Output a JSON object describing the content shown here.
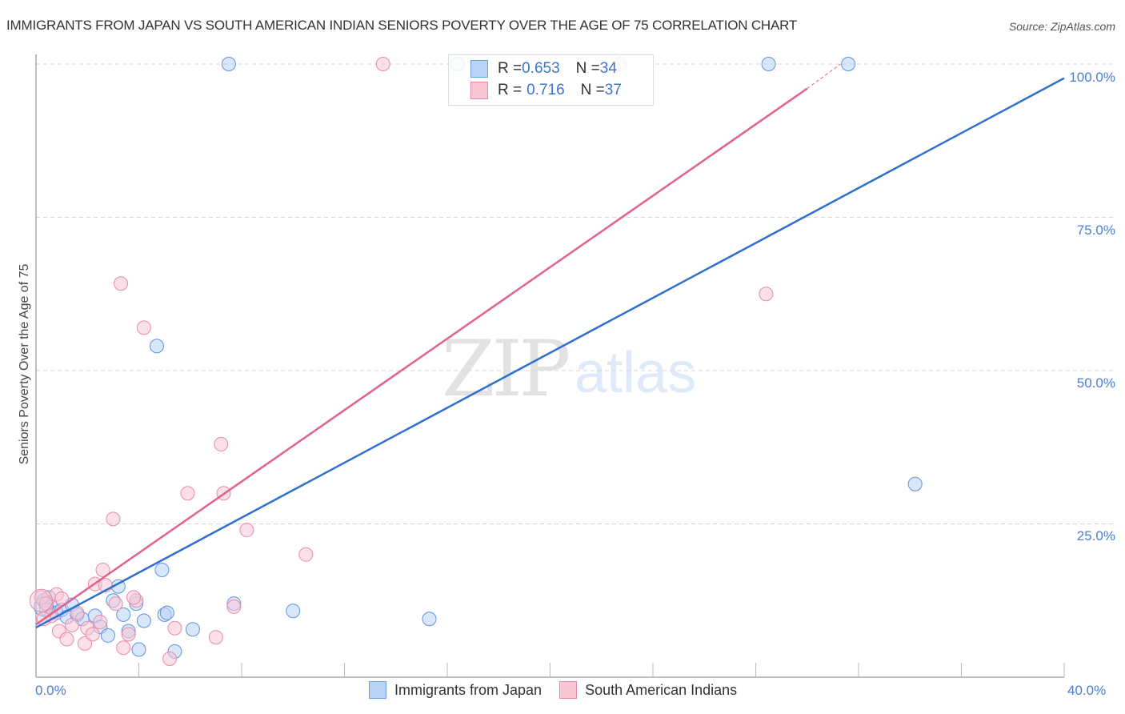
{
  "header": {
    "title": "IMMIGRANTS FROM JAPAN VS SOUTH AMERICAN INDIAN SENIORS POVERTY OVER THE AGE OF 75 CORRELATION CHART",
    "source": "Source: ZipAtlas.com"
  },
  "watermark": {
    "zip": "ZIP",
    "atlas": "atlas"
  },
  "axes": {
    "ylabel": "Seniors Poverty Over the Age of 75",
    "yticks": [
      "100.0%",
      "75.0%",
      "50.0%",
      "25.0%"
    ],
    "xticks": [
      "0.0%",
      "40.0%"
    ]
  },
  "legend": {
    "rows": [
      {
        "r_label": "R = ",
        "r_value": "0.653",
        "n_label": "N = ",
        "n_value": "34",
        "color": "#a9c8f2"
      },
      {
        "r_label": "R = ",
        "r_value": "0.716",
        "n_label": "N = ",
        "n_value": "37",
        "color": "#f6b8cb"
      }
    ]
  },
  "bottom_legend": {
    "items": [
      {
        "label": "Immigrants from Japan",
        "color": "#a9c8f2",
        "border": "#6f9ee3"
      },
      {
        "label": "South American Indians",
        "color": "#f6c2d2",
        "border": "#e88aa7"
      }
    ]
  },
  "colors": {
    "blue_line": "#2f6fd1",
    "pink_line": "#e0628a",
    "blue_fill": "#b9d3f5",
    "blue_stroke": "#5f92dd",
    "pink_fill": "#f8c7d6",
    "pink_stroke": "#e88aa7",
    "tick_text": "#4a7fd4"
  },
  "chart_data": {
    "type": "scatter",
    "title": "IMMIGRANTS FROM JAPAN VS SOUTH AMERICAN INDIAN SENIORS POVERTY OVER THE AGE OF 75 CORRELATION CHART",
    "xlabel": "",
    "ylabel": "Seniors Poverty Over the Age of 75",
    "xlim": [
      0,
      40
    ],
    "ylim": [
      0,
      100
    ],
    "x_unit": "%",
    "y_unit": "%",
    "grid": "horizontal dashed at 25,50,75,100",
    "legend_position": "top-center (stats) and bottom (series)",
    "series": [
      {
        "name": "Immigrants from Japan",
        "R": 0.653,
        "N": 34,
        "trendline": {
          "x": [
            0,
            40
          ],
          "y": [
            8.1,
            97.7
          ]
        },
        "points": [
          [
            0.3,
            12.5
          ],
          [
            0.5,
            13.0
          ],
          [
            0.6,
            11.5
          ],
          [
            0.8,
            10.5
          ],
          [
            1.0,
            11.0
          ],
          [
            1.2,
            9.8
          ],
          [
            1.4,
            11.8
          ],
          [
            1.6,
            10.2
          ],
          [
            1.8,
            9.5
          ],
          [
            2.3,
            10.0
          ],
          [
            2.5,
            8.2
          ],
          [
            2.8,
            6.8
          ],
          [
            3.0,
            12.5
          ],
          [
            3.2,
            14.8
          ],
          [
            3.4,
            10.2
          ],
          [
            3.6,
            7.5
          ],
          [
            3.9,
            12.0
          ],
          [
            4.0,
            4.5
          ],
          [
            4.2,
            9.2
          ],
          [
            4.7,
            54.0
          ],
          [
            4.9,
            17.5
          ],
          [
            5.0,
            10.2
          ],
          [
            5.1,
            10.5
          ],
          [
            5.4,
            4.2
          ],
          [
            6.1,
            7.8
          ],
          [
            7.5,
            100.0
          ],
          [
            7.7,
            12.0
          ],
          [
            10.0,
            10.8
          ],
          [
            15.3,
            9.5
          ],
          [
            16.4,
            100.0
          ],
          [
            28.5,
            100.0
          ],
          [
            31.6,
            100.0
          ],
          [
            34.2,
            31.5
          ],
          [
            0.4,
            11.0
          ]
        ]
      },
      {
        "name": "South American Indians",
        "R": 0.716,
        "N": 37,
        "trendline": {
          "x": [
            0,
            30
          ],
          "y": [
            8.6,
            96.0
          ],
          "dashed_extension_to": [
            31.3,
            100
          ]
        },
        "points": [
          [
            0.2,
            13.0
          ],
          [
            0.4,
            12.0
          ],
          [
            0.6,
            10.0
          ],
          [
            0.8,
            13.5
          ],
          [
            0.9,
            7.5
          ],
          [
            1.2,
            6.2
          ],
          [
            1.4,
            8.5
          ],
          [
            1.6,
            10.5
          ],
          [
            1.9,
            5.5
          ],
          [
            2.0,
            8.0
          ],
          [
            2.2,
            7.0
          ],
          [
            2.3,
            15.2
          ],
          [
            2.6,
            17.5
          ],
          [
            2.7,
            15.0
          ],
          [
            3.0,
            25.8
          ],
          [
            3.1,
            12.0
          ],
          [
            3.3,
            64.2
          ],
          [
            3.4,
            4.8
          ],
          [
            3.6,
            7.0
          ],
          [
            3.9,
            12.5
          ],
          [
            4.2,
            57.0
          ],
          [
            5.2,
            3.0
          ],
          [
            5.4,
            8.0
          ],
          [
            5.9,
            30.0
          ],
          [
            7.0,
            6.5
          ],
          [
            7.2,
            38.0
          ],
          [
            7.3,
            30.0
          ],
          [
            7.7,
            11.5
          ],
          [
            8.2,
            24.0
          ],
          [
            10.5,
            20.0
          ],
          [
            13.5,
            100.0
          ],
          [
            22.7,
            100.0
          ],
          [
            28.4,
            62.5
          ],
          [
            1.0,
            12.8
          ],
          [
            2.5,
            9.0
          ],
          [
            0.3,
            9.5
          ],
          [
            3.8,
            13.0
          ]
        ]
      }
    ]
  }
}
